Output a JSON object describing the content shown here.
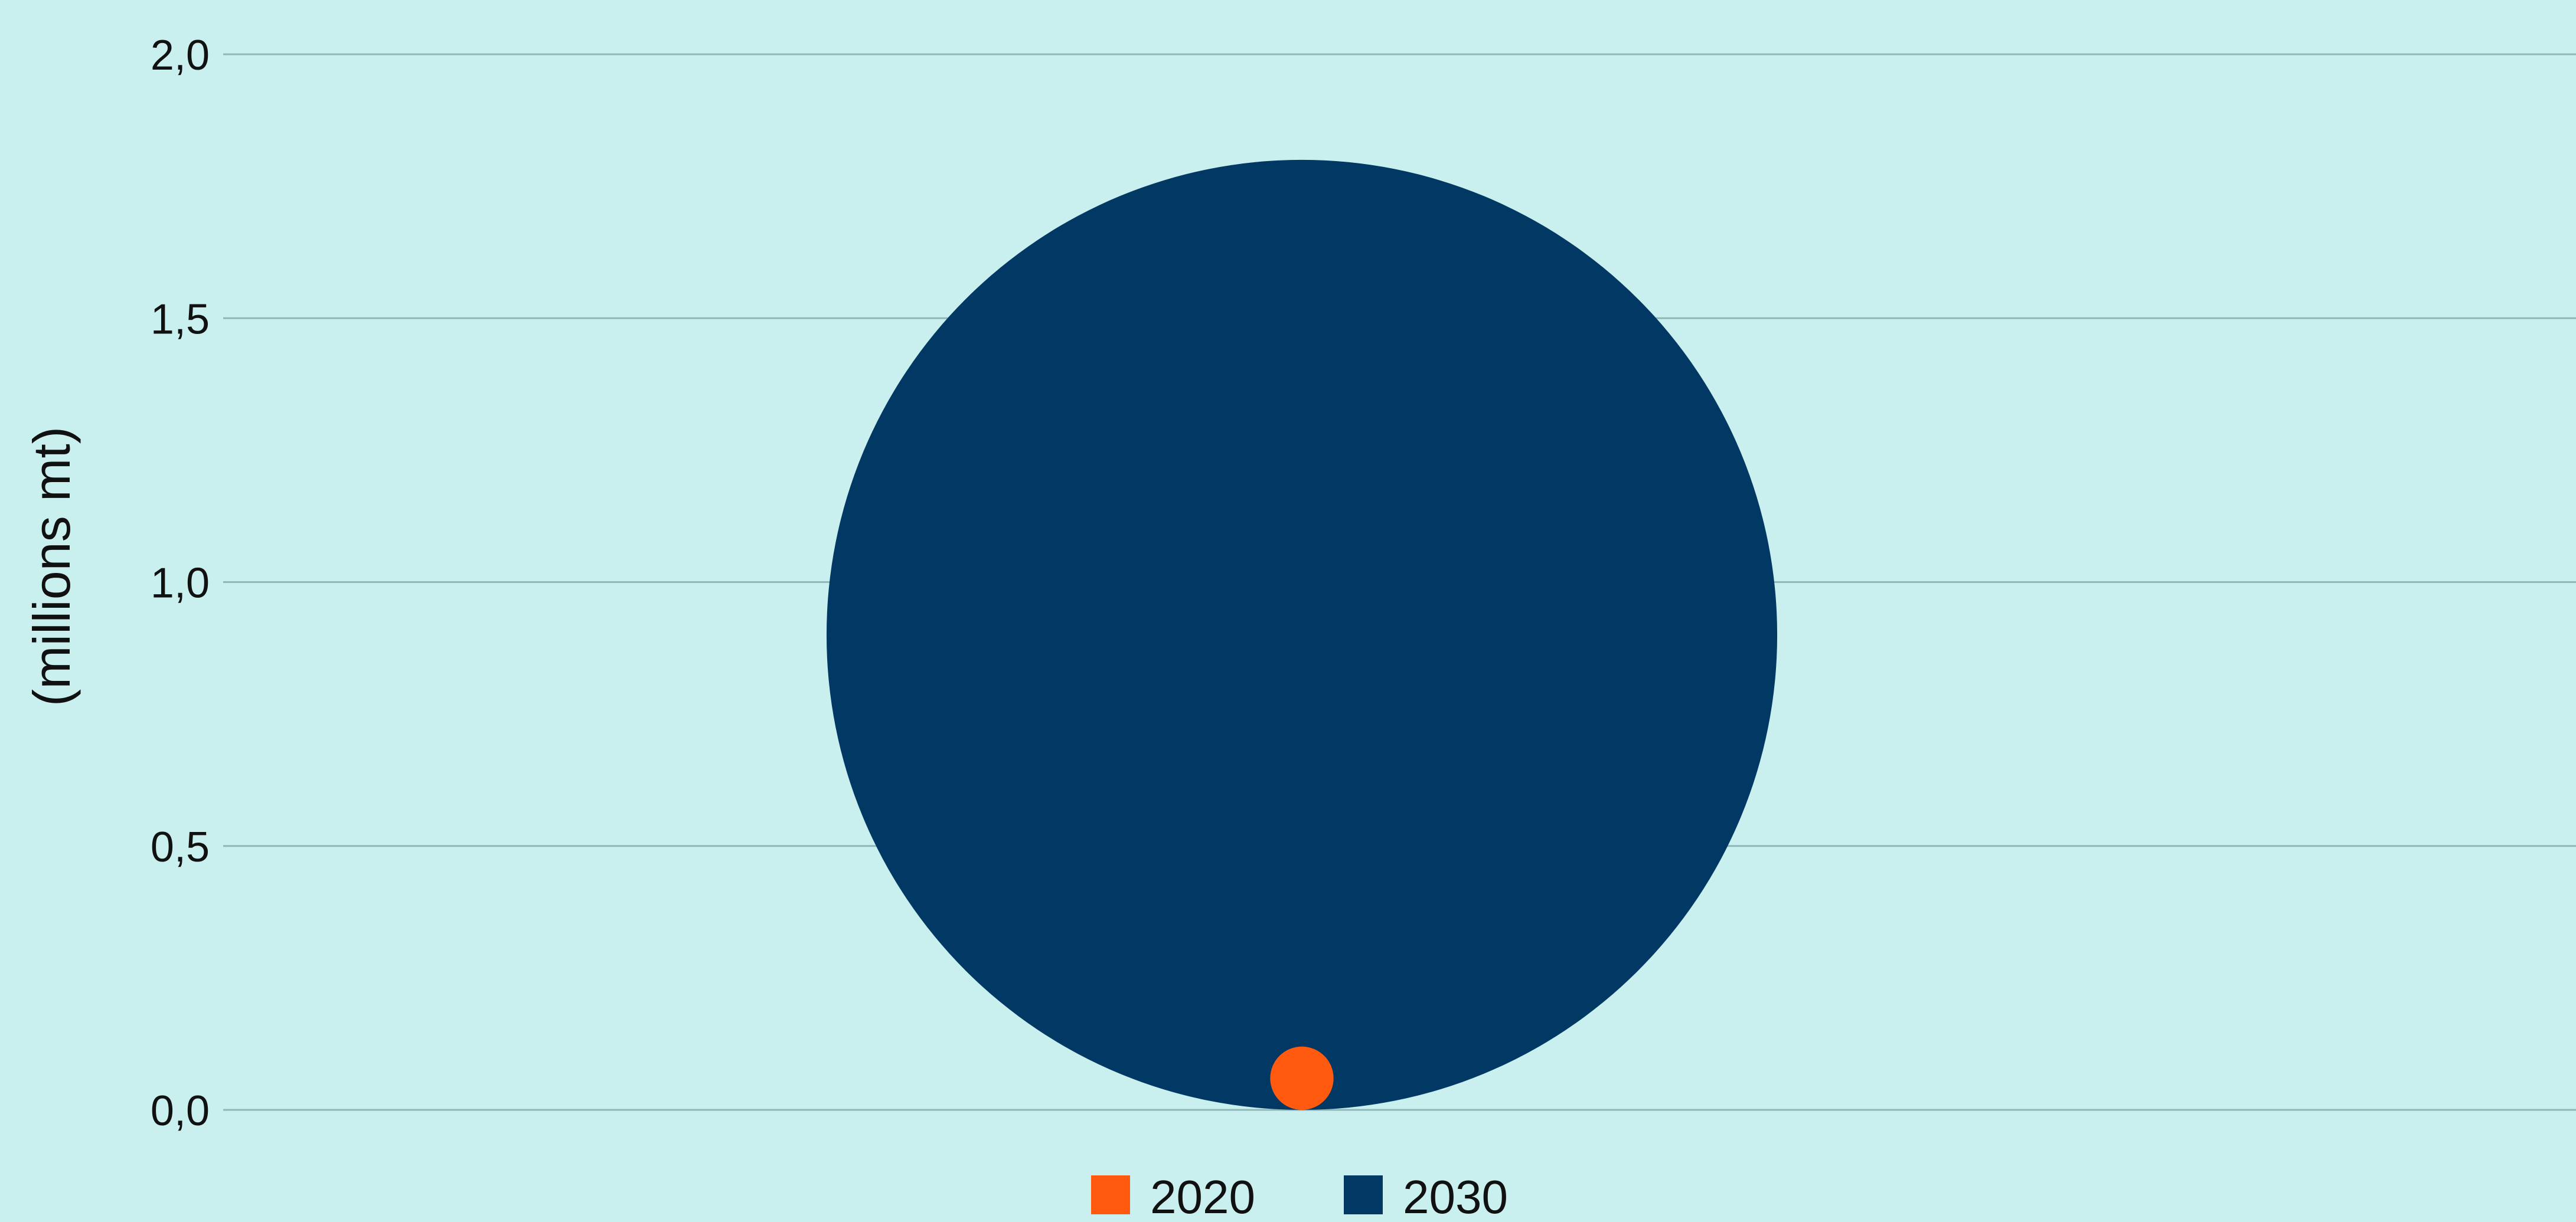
{
  "chart_data": {
    "type": "scatter",
    "subtype": "bubble",
    "title": "",
    "xlabel": "",
    "ylabel": "(millions mt)",
    "ylim": [
      0,
      2.0
    ],
    "yticks": [
      "0,0",
      "0,5",
      "1,0",
      "1,5",
      "2,0"
    ],
    "grid": true,
    "legend_position": "bottom-center",
    "series": [
      {
        "name": "2030",
        "value": 1.8,
        "color": "#023864"
      },
      {
        "name": "2020",
        "value": 0.12,
        "color": "#ff5a0f"
      }
    ]
  },
  "colors": {
    "background": "#c9f0ef",
    "grid": "#8fb7b8",
    "text": "#111111"
  }
}
